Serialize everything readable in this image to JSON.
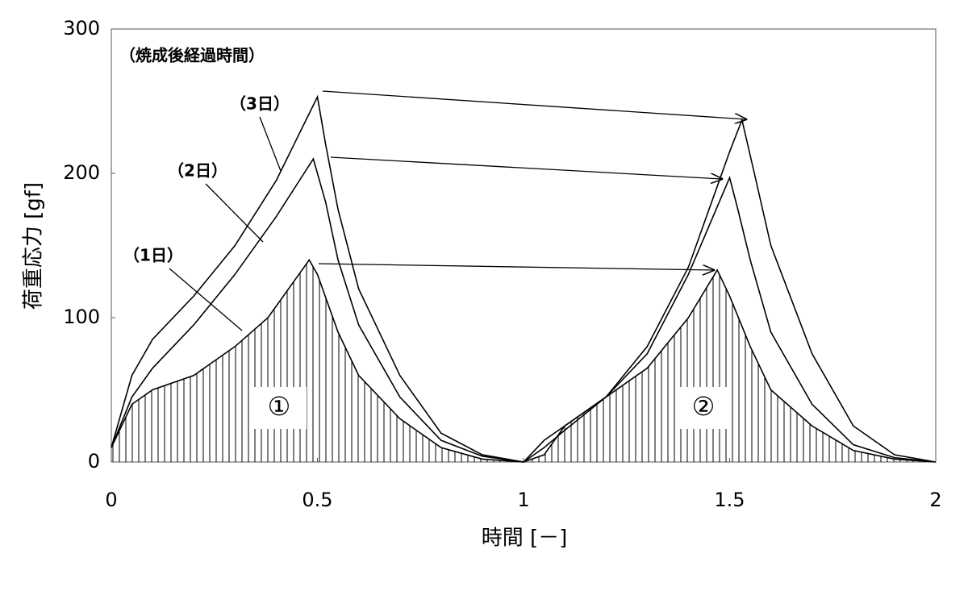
{
  "chart_data": {
    "type": "line",
    "title": "（焼成後経過時間）",
    "x_label": "時間 [－]",
    "y_label": "荷重応力 [gf]",
    "xlim": [
      0,
      2
    ],
    "xticks": [
      0,
      0.5,
      1,
      1.5,
      2
    ],
    "ylim": [
      0,
      300
    ],
    "yticks": [
      0,
      100,
      200,
      300
    ],
    "grid": false,
    "series": [
      {
        "name": "（1日）",
        "color": "#000000",
        "x": [
          0,
          0.05,
          0.1,
          0.2,
          0.3,
          0.38,
          0.43,
          0.48,
          0.5,
          0.55,
          0.6,
          0.7,
          0.8,
          0.9,
          1.0,
          1.05,
          1.1,
          1.2,
          1.3,
          1.4,
          1.47,
          1.5,
          1.55,
          1.6,
          1.7,
          1.8,
          1.9,
          2.0
        ],
        "values": [
          10,
          40,
          50,
          60,
          80,
          100,
          120,
          140,
          130,
          90,
          60,
          30,
          10,
          2,
          0,
          5,
          25,
          45,
          65,
          100,
          133,
          115,
          80,
          50,
          25,
          8,
          2,
          0
        ]
      },
      {
        "name": "（2日）",
        "color": "#000000",
        "x": [
          0,
          0.05,
          0.1,
          0.2,
          0.3,
          0.4,
          0.49,
          0.52,
          0.55,
          0.6,
          0.7,
          0.8,
          0.9,
          1.0,
          1.05,
          1.1,
          1.2,
          1.3,
          1.4,
          1.5,
          1.52,
          1.55,
          1.6,
          1.7,
          1.8,
          1.9,
          2.0
        ],
        "values": [
          10,
          45,
          65,
          95,
          130,
          170,
          210,
          180,
          140,
          95,
          45,
          15,
          4,
          0,
          15,
          25,
          45,
          75,
          130,
          197,
          175,
          140,
          90,
          40,
          12,
          3,
          0
        ]
      },
      {
        "name": "（3日）",
        "color": "#000000",
        "x": [
          0,
          0.05,
          0.1,
          0.2,
          0.3,
          0.4,
          0.5,
          0.52,
          0.55,
          0.6,
          0.7,
          0.8,
          0.9,
          1.0,
          1.05,
          1.1,
          1.2,
          1.3,
          1.4,
          1.5,
          1.53,
          1.56,
          1.6,
          1.7,
          1.8,
          1.9,
          2.0
        ],
        "values": [
          10,
          60,
          85,
          115,
          150,
          195,
          253,
          220,
          175,
          120,
          60,
          20,
          5,
          0,
          10,
          22,
          45,
          80,
          135,
          215,
          237,
          200,
          150,
          75,
          25,
          5,
          0
        ]
      }
    ],
    "annotations": [
      "①",
      "②"
    ]
  }
}
